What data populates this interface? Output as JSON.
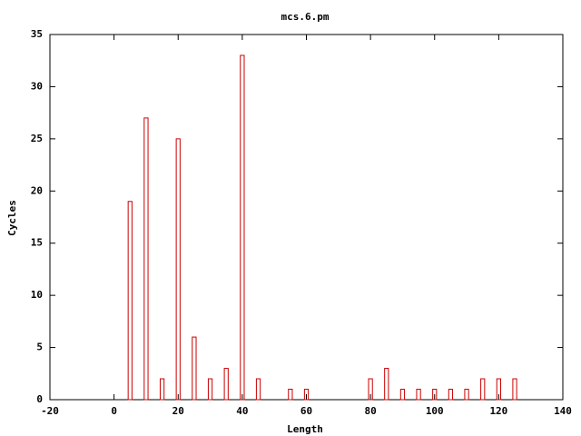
{
  "chart_data": {
    "type": "bar",
    "title": "mcs.6.pm",
    "x_label": "Length",
    "y_label": "Cycles",
    "x": [
      5,
      10,
      15,
      20,
      25,
      30,
      35,
      40,
      45,
      55,
      60,
      80,
      85,
      90,
      95,
      100,
      105,
      110,
      115,
      120,
      125
    ],
    "values": [
      19,
      27,
      2,
      25,
      6,
      2,
      3,
      33,
      2,
      1,
      1,
      2,
      3,
      1,
      1,
      1,
      1,
      1,
      2,
      2,
      2
    ],
    "color": "#cc0000",
    "xlim": [
      -20,
      140
    ],
    "xticks": [
      -20,
      0,
      20,
      40,
      60,
      80,
      100,
      120,
      140
    ],
    "ylim": [
      0,
      35
    ],
    "yticks": [
      0,
      5,
      10,
      15,
      20,
      25,
      30,
      35
    ]
  }
}
